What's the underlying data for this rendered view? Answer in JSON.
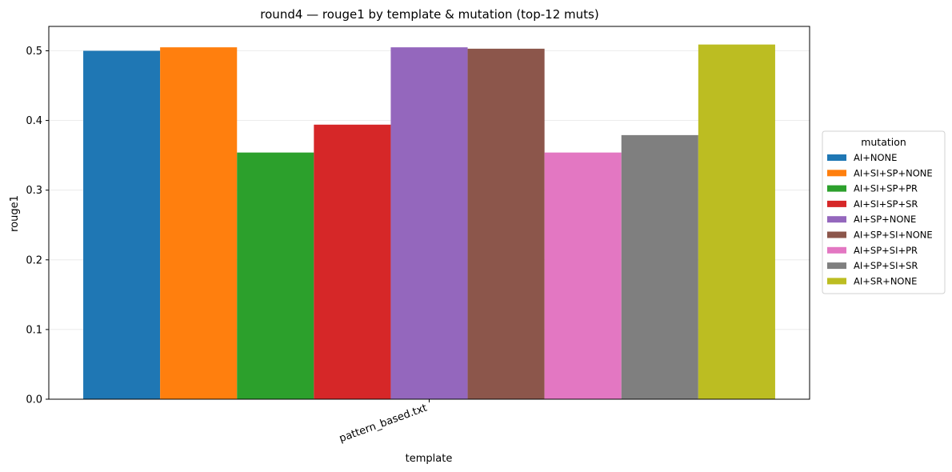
{
  "chart_data": {
    "type": "bar",
    "title": "round4 — rouge1 by template & mutation (top-12 muts)",
    "xlabel": "template",
    "ylabel": "rouge1",
    "categories": [
      "pattern_based.txt"
    ],
    "ylim": [
      0,
      0.535
    ],
    "yticks": [
      0.0,
      0.1,
      0.2,
      0.3,
      0.4,
      0.5
    ],
    "ytick_labels": [
      "0.0",
      "0.1",
      "0.2",
      "0.3",
      "0.4",
      "0.5"
    ],
    "grid": "horizontal",
    "legend": {
      "title": "mutation",
      "placement": "right"
    },
    "series": [
      {
        "name": "AI+NONE",
        "values": [
          0.5
        ],
        "color": "#1f77b4"
      },
      {
        "name": "AI+SI+SP+NONE",
        "values": [
          0.505
        ],
        "color": "#ff7f0e"
      },
      {
        "name": "AI+SI+SP+PR",
        "values": [
          0.354
        ],
        "color": "#2ca02c"
      },
      {
        "name": "AI+SI+SP+SR",
        "values": [
          0.394
        ],
        "color": "#d62728"
      },
      {
        "name": "AI+SP+NONE",
        "values": [
          0.505
        ],
        "color": "#9467bd"
      },
      {
        "name": "AI+SP+SI+NONE",
        "values": [
          0.503
        ],
        "color": "#8c564b"
      },
      {
        "name": "AI+SP+SI+PR",
        "values": [
          0.354
        ],
        "color": "#e377c2"
      },
      {
        "name": "AI+SP+SI+SR",
        "values": [
          0.379
        ],
        "color": "#7f7f7f"
      },
      {
        "name": "AI+SR+NONE",
        "values": [
          0.509
        ],
        "color": "#bcbd22"
      }
    ]
  }
}
